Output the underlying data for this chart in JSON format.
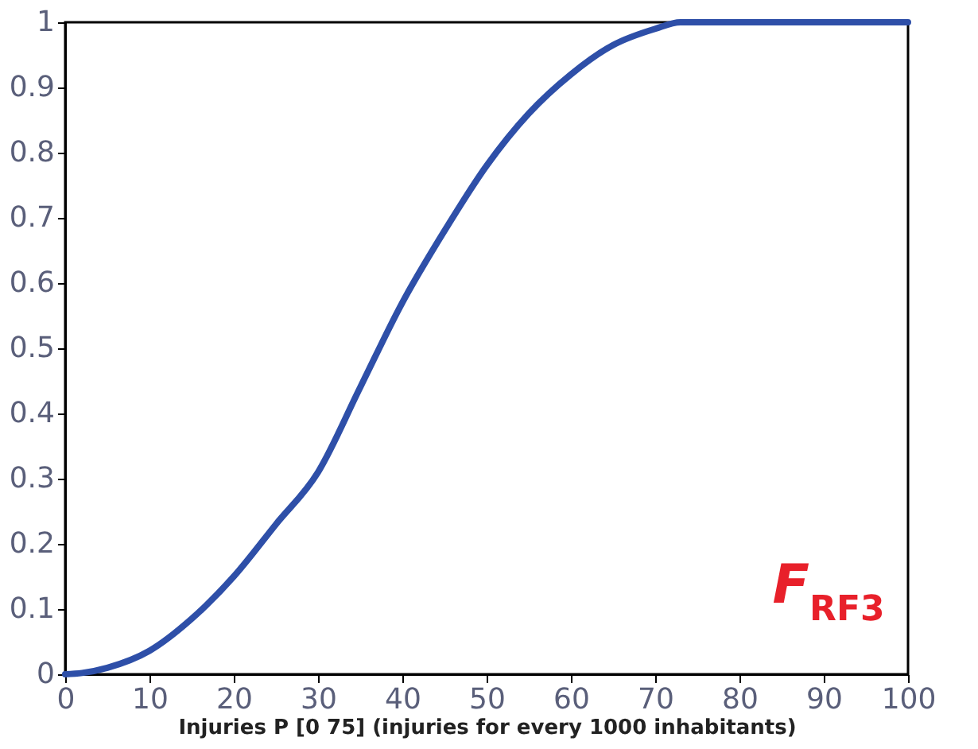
{
  "chart_data": {
    "type": "line",
    "xlabel": "Injuries P [0 75] (injuries for every 1000 inhabitants)",
    "x": [
      0,
      2,
      5,
      10,
      15,
      20,
      25,
      30,
      35,
      40,
      45,
      50,
      55,
      60,
      65,
      70,
      73,
      80,
      90,
      100
    ],
    "series": [
      {
        "color": "#2e4fa8",
        "values": [
          0,
          0.002,
          0.01,
          0.036,
          0.085,
          0.15,
          0.23,
          0.31,
          0.44,
          0.57,
          0.68,
          0.78,
          0.86,
          0.92,
          0.965,
          0.99,
          1,
          1,
          1,
          1
        ]
      }
    ],
    "xlim": [
      0,
      100
    ],
    "xticks": [
      0,
      10,
      20,
      30,
      40,
      50,
      60,
      70,
      80,
      90,
      100
    ],
    "ylim": [
      0,
      1
    ],
    "yticks": [
      0,
      0.1,
      0.2,
      0.3,
      0.4,
      0.5,
      0.6,
      0.7,
      0.8,
      0.9,
      1
    ],
    "grid": false,
    "marker": "none",
    "line_style": "solid",
    "annotations": [
      "F$_{RF3}$"
    ]
  }
}
